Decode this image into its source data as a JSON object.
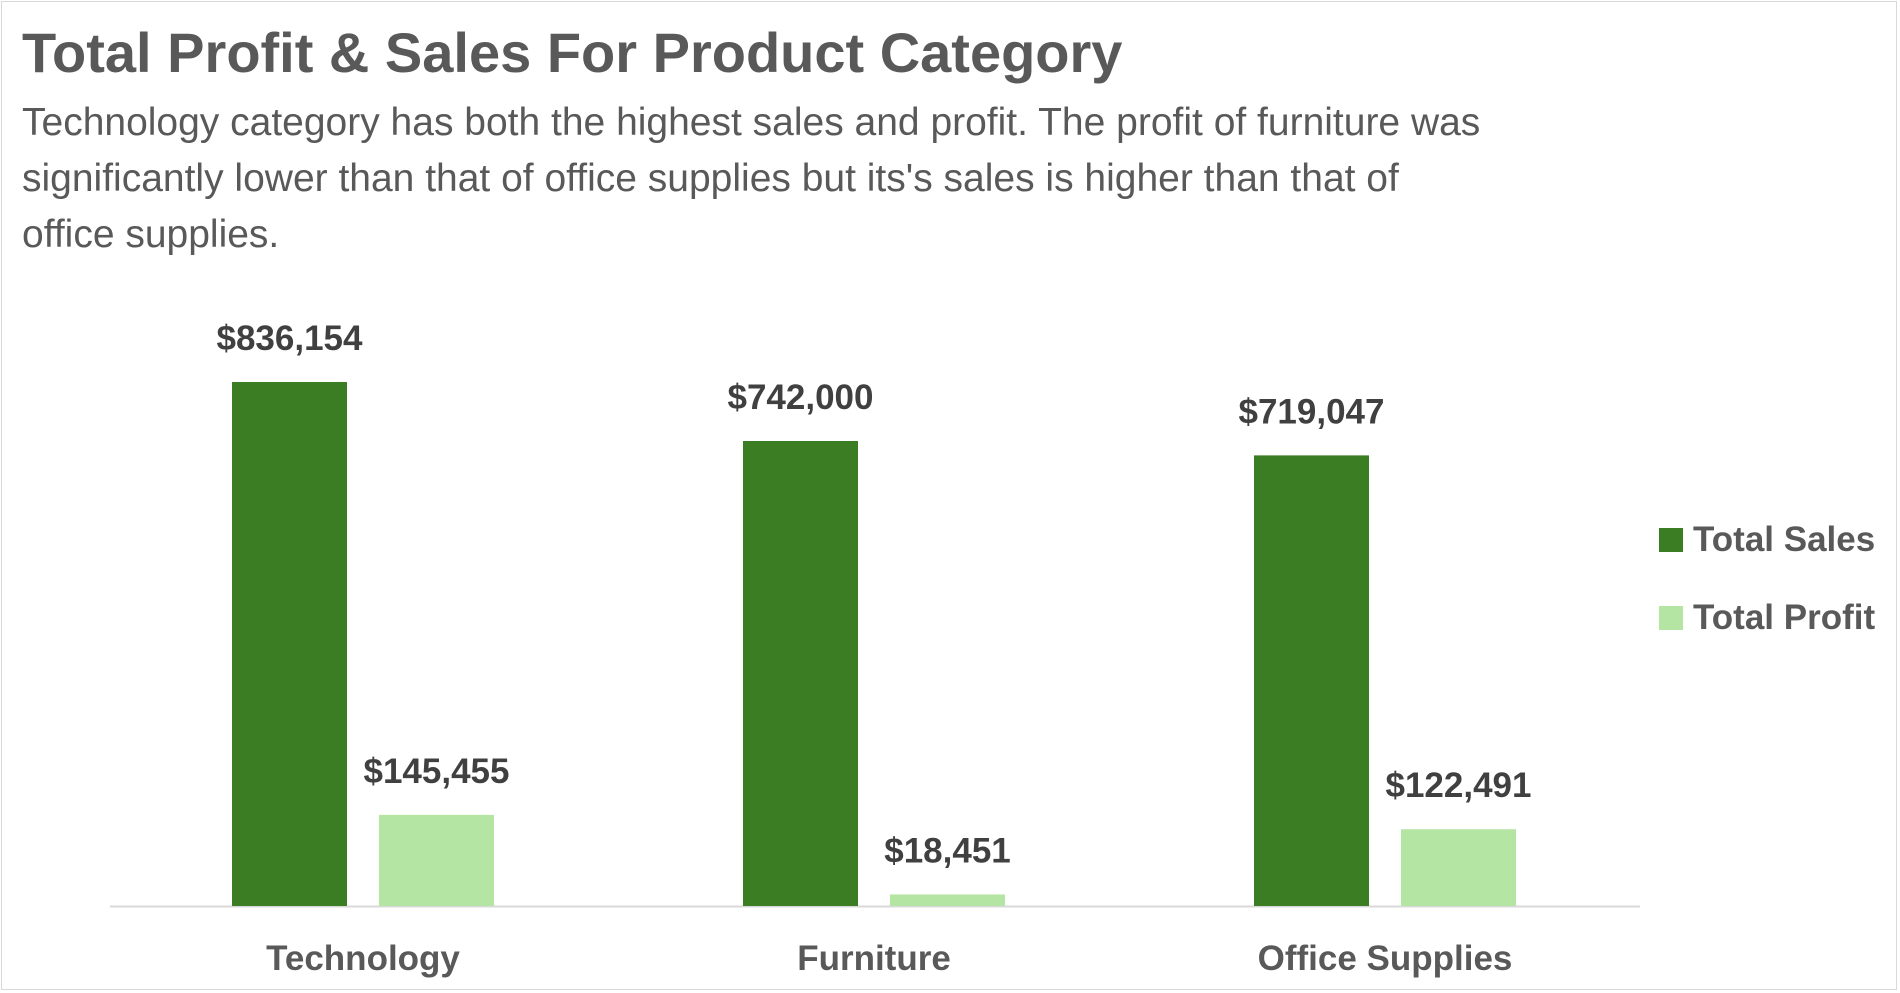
{
  "colors": {
    "sales": "#3b7d23",
    "profit": "#b4e5a2",
    "axis": "#d9d9d9",
    "data_label": "#404040",
    "text": "#595959"
  },
  "chart_data": {
    "type": "bar",
    "title": "Total Profit & Sales For Product Category",
    "subtitle": "Technology category has both the highest sales and profit. The profit of furniture was significantly lower than that of office supplies but its's sales is higher than that of office supplies.",
    "categories": [
      "Technology",
      "Furniture",
      "Office Supplies"
    ],
    "series": [
      {
        "name": "Total Sales",
        "values": [
          836154,
          742000,
          719047
        ],
        "labels": [
          "$836,154",
          "$742,000",
          "$719,047"
        ]
      },
      {
        "name": "Total Profit",
        "values": [
          145455,
          18451,
          122491
        ],
        "labels": [
          "$145,455",
          "$18,451",
          "$122,491"
        ]
      }
    ],
    "xlabel": "",
    "ylabel": "",
    "ylim": [
      0,
      1000000
    ],
    "grid": false,
    "legend": "right"
  }
}
